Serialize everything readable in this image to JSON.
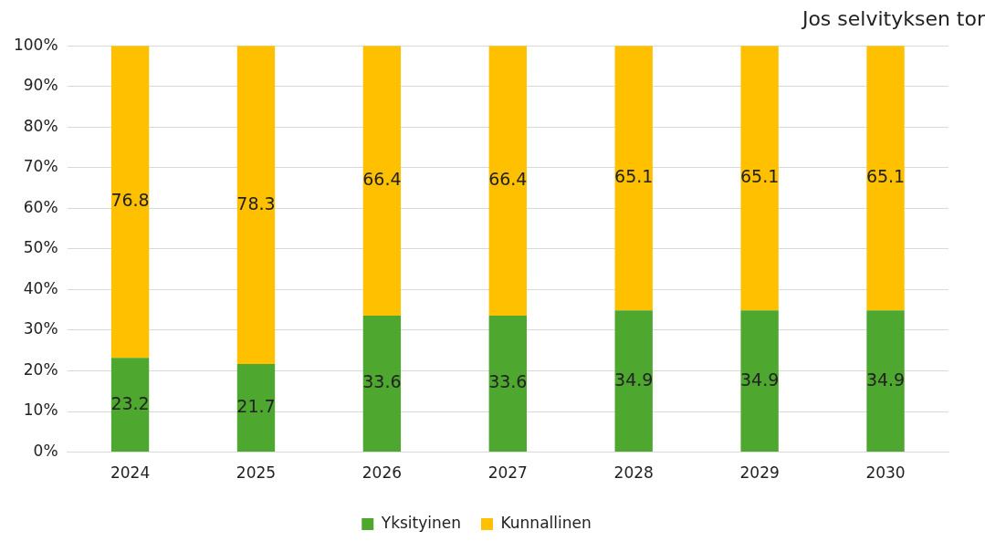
{
  "chart_data": {
    "type": "bar",
    "title": "Jos selvityksen tor",
    "categories": [
      "2024",
      "2025",
      "2026",
      "2027",
      "2028",
      "2029",
      "2030"
    ],
    "series": [
      {
        "name": "Yksityinen",
        "color": "#4ea72e",
        "values": [
          23.2,
          21.7,
          33.6,
          33.6,
          34.9,
          34.9,
          34.9
        ]
      },
      {
        "name": "Kunnallinen",
        "color": "#ffc000",
        "values": [
          76.8,
          78.3,
          66.4,
          66.4,
          65.1,
          65.1,
          65.1
        ]
      }
    ],
    "stacked": true,
    "ylim": [
      0,
      100
    ],
    "yticks": [
      {
        "value": 0,
        "label": "0%"
      },
      {
        "value": 10,
        "label": "10%"
      },
      {
        "value": 20,
        "label": "20%"
      },
      {
        "value": 30,
        "label": "30%"
      },
      {
        "value": 40,
        "label": "40%"
      },
      {
        "value": 50,
        "label": "50%"
      },
      {
        "value": 60,
        "label": "60%"
      },
      {
        "value": 70,
        "label": "70%"
      },
      {
        "value": 80,
        "label": "80%"
      },
      {
        "value": 90,
        "label": "90%"
      },
      {
        "value": 100,
        "label": "100%"
      }
    ],
    "grid": "y",
    "legend": "bottom",
    "data_labels": true
  }
}
